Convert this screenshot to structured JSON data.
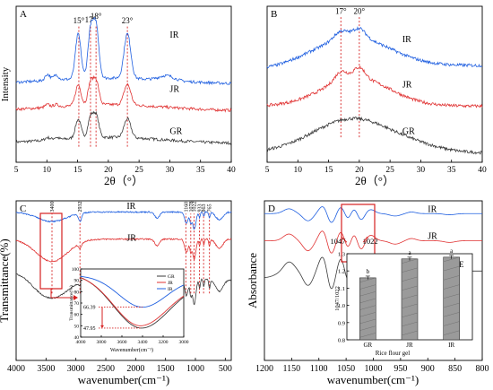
{
  "colors": {
    "IR": "#1f5fe0",
    "JR": "#e03232",
    "GR": "#3a3a3a",
    "red": "#d62020",
    "bar": "#9a9a9a"
  },
  "chart_data": [
    {
      "panel": "A",
      "type": "line",
      "xlabel": "2θ（°）",
      "ylabel": "Intensity",
      "xlim": [
        5,
        40
      ],
      "xticks": [
        5,
        10,
        15,
        20,
        25,
        30,
        35,
        40
      ],
      "series": [
        {
          "name": "IR",
          "label_at": [
            30,
            0.8
          ]
        },
        {
          "name": "JR",
          "label_at": [
            30,
            0.45
          ]
        },
        {
          "name": "GR",
          "label_at": [
            30,
            0.18
          ]
        }
      ],
      "peaks": [
        {
          "label": "15°",
          "x": 15.2
        },
        {
          "label": "17°",
          "x": 17.1
        },
        {
          "label": "18°",
          "x": 18.0
        },
        {
          "label": "23°",
          "x": 23.1
        }
      ]
    },
    {
      "panel": "B",
      "type": "line",
      "xlabel": "2θ（°）",
      "ylabel": "",
      "xlim": [
        5,
        40
      ],
      "xticks": [
        5,
        10,
        15,
        20,
        25,
        30,
        35,
        40
      ],
      "series": [
        {
          "name": "IR",
          "label_at": [
            27,
            0.77
          ]
        },
        {
          "name": "JR",
          "label_at": [
            27,
            0.48
          ]
        },
        {
          "name": "GR",
          "label_at": [
            27,
            0.18
          ]
        }
      ],
      "peaks": [
        {
          "label": "17°",
          "x": 17
        },
        {
          "label": "20°",
          "x": 20
        }
      ]
    },
    {
      "panel": "C",
      "type": "line",
      "xlabel": "wavenumber(cm⁻¹)",
      "ylabel": "Transmittance(%)",
      "xlim": [
        4000,
        400
      ],
      "xticks": [
        4000,
        3500,
        3000,
        2500,
        2000,
        1500,
        1000,
        500
      ],
      "series": [
        {
          "name": "IR",
          "label_at": [
            2150,
            0.95
          ]
        },
        {
          "name": "JR",
          "label_at": [
            2150,
            0.75
          ]
        },
        {
          "name": "GR",
          "label_at": [
            2150,
            0.52
          ]
        }
      ],
      "peaks": [
        {
          "label": "3400",
          "x": 3400
        },
        {
          "label": "2932",
          "x": 2932
        },
        {
          "label": "1160",
          "x": 1160
        },
        {
          "label": "1078",
          "x": 1078
        },
        {
          "label": "1022",
          "x": 1022
        },
        {
          "label": "933",
          "x": 933
        },
        {
          "label": "863",
          "x": 863
        },
        {
          "label": "765",
          "x": 765
        }
      ],
      "inset": {
        "ylabel": "Transmittance(%)",
        "xlabel": "Wavenumber(cm⁻¹)",
        "xlim": [
          4000,
          3000
        ],
        "ylim": [
          40,
          100
        ],
        "xticks": [
          4000,
          3800,
          3600,
          3400,
          3200,
          3000
        ],
        "yticks": [
          40,
          50,
          60,
          70,
          80,
          90,
          100
        ],
        "legend": [
          "GR",
          "JR",
          "IR"
        ],
        "annotations": [
          "66.39",
          "47.95"
        ],
        "minima": [
          {
            "name": "IR",
            "x": 3400,
            "y": 66.39
          },
          {
            "name": "JR",
            "x": 3420,
            "y": 50
          },
          {
            "name": "GR",
            "x": 3410,
            "y": 47.95
          }
        ]
      }
    },
    {
      "panel": "D",
      "type": "line",
      "xlabel": "wavenumber(cm⁻¹)",
      "ylabel": "Absorbance",
      "xlim": [
        1200,
        800
      ],
      "xticks": [
        1200,
        1150,
        1100,
        1050,
        1000,
        950,
        900,
        850,
        800
      ],
      "series": [
        {
          "name": "IR",
          "label_at": [
            900,
            0.93
          ]
        },
        {
          "name": "JR",
          "label_at": [
            900,
            0.76
          ]
        },
        {
          "name": "GR",
          "label_at": [
            900,
            0.57
          ]
        }
      ],
      "peaks": [
        {
          "label": "1047",
          "x": 1047
        },
        {
          "label": "1022",
          "x": 1022
        }
      ],
      "inset": {
        "panel": "E",
        "type": "bar",
        "ylabel": "1047/1022",
        "xlabel": "Rice flour gel",
        "categories": [
          "GR",
          "JR",
          "IR"
        ],
        "values": [
          1.16,
          1.27,
          1.28
        ],
        "errors": [
          0.01,
          0.01,
          0.01
        ],
        "letters": [
          "b",
          "a",
          "a"
        ],
        "ylim": [
          0.8,
          1.3
        ],
        "yticks": [
          0.8,
          0.9,
          1.0,
          1.1,
          1.2,
          1.3
        ]
      }
    }
  ]
}
